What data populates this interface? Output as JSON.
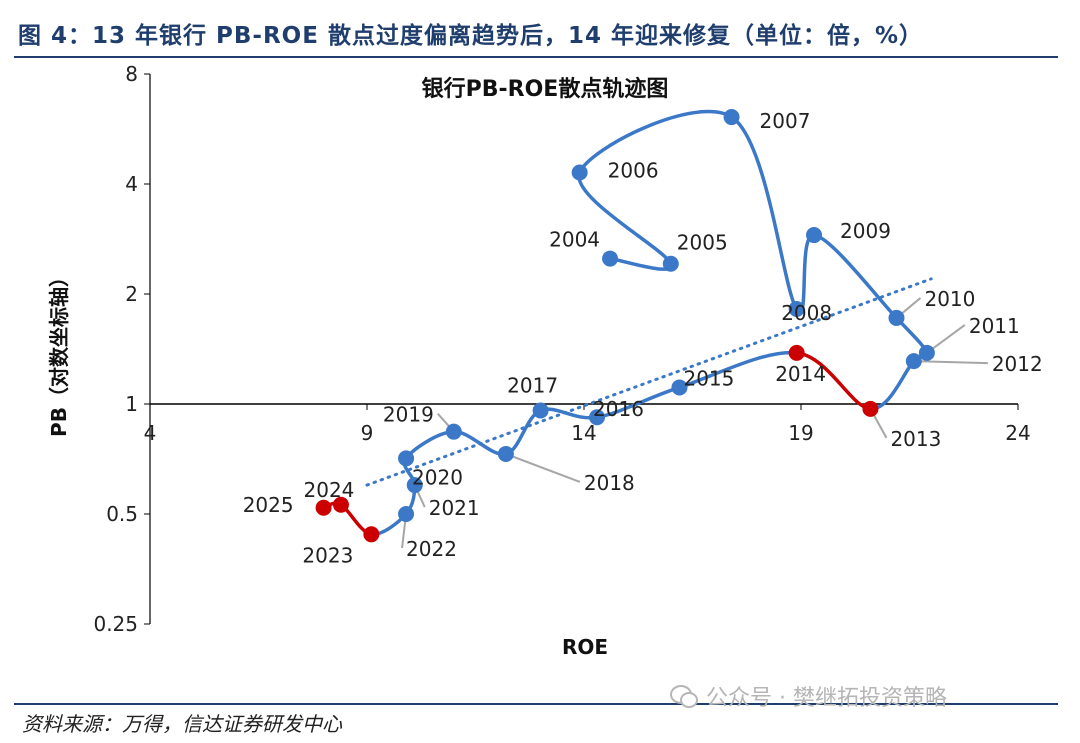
{
  "figure": {
    "title": "图 4：13 年银行 PB-ROE 散点过度偏离趋势后，14 年迎来修复（单位：倍，%）",
    "source": "资料来源：万得，信达证券研发中心",
    "watermark": "公众号 · 樊继拓投资策略"
  },
  "colors": {
    "header": "#1f3e6e",
    "series_blue": "#3b78c8",
    "series_red": "#cc0000",
    "trend": "#3b78c8",
    "leader": "#a6a6a6"
  },
  "chart_data": {
    "type": "scatter",
    "title": "银行PB-ROE散点轨迹图",
    "xlabel": "ROE",
    "ylabel": "PB（对数坐标轴）",
    "y_scale": "log2",
    "xlim": [
      4,
      24
    ],
    "ylim": [
      0.25,
      8
    ],
    "x_ticks": [
      4,
      9,
      14,
      19,
      24
    ],
    "y_ticks": [
      0.25,
      0.5,
      1,
      2,
      4,
      8
    ],
    "y_tick_labels": [
      "0.25",
      "0.5",
      "1",
      "2",
      "4",
      "8"
    ],
    "x_axis_crosses_y": 1,
    "points": [
      {
        "label": "2004",
        "x": 14.6,
        "y": 2.5,
        "color": "blue"
      },
      {
        "label": "2005",
        "x": 16.0,
        "y": 2.42,
        "color": "blue"
      },
      {
        "label": "2006",
        "x": 13.9,
        "y": 4.3,
        "color": "blue"
      },
      {
        "label": "2007",
        "x": 17.4,
        "y": 6.1,
        "color": "blue"
      },
      {
        "label": "2008",
        "x": 18.9,
        "y": 1.82,
        "color": "blue"
      },
      {
        "label": "2009",
        "x": 19.3,
        "y": 2.9,
        "color": "blue"
      },
      {
        "label": "2010",
        "x": 21.2,
        "y": 1.72,
        "color": "blue"
      },
      {
        "label": "2011",
        "x": 21.9,
        "y": 1.38,
        "color": "blue"
      },
      {
        "label": "2012",
        "x": 21.6,
        "y": 1.31,
        "color": "blue"
      },
      {
        "label": "2013",
        "x": 20.6,
        "y": 0.97,
        "color": "red"
      },
      {
        "label": "2014",
        "x": 18.9,
        "y": 1.38,
        "color": "red"
      },
      {
        "label": "2015",
        "x": 16.2,
        "y": 1.11,
        "color": "blue"
      },
      {
        "label": "2016",
        "x": 14.3,
        "y": 0.92,
        "color": "blue"
      },
      {
        "label": "2017",
        "x": 13.0,
        "y": 0.96,
        "color": "blue"
      },
      {
        "label": "2018",
        "x": 12.2,
        "y": 0.73,
        "color": "blue"
      },
      {
        "label": "2019",
        "x": 11.0,
        "y": 0.84,
        "color": "blue"
      },
      {
        "label": "2020",
        "x": 9.9,
        "y": 0.71,
        "color": "blue"
      },
      {
        "label": "2021",
        "x": 10.1,
        "y": 0.6,
        "color": "blue"
      },
      {
        "label": "2022",
        "x": 9.9,
        "y": 0.5,
        "color": "blue"
      },
      {
        "label": "2023",
        "x": 9.1,
        "y": 0.44,
        "color": "red"
      },
      {
        "label": "2024",
        "x": 8.4,
        "y": 0.53,
        "color": "red"
      },
      {
        "label": "2025",
        "x": 8.0,
        "y": 0.52,
        "color": "red"
      }
    ],
    "red_segments": [
      [
        "2013",
        "2014"
      ],
      [
        "2023",
        "2024"
      ],
      [
        "2024",
        "2025"
      ]
    ],
    "trendline": {
      "style": "dotted",
      "from": {
        "x": 9.0,
        "y": 0.6
      },
      "to": {
        "x": 22.0,
        "y": 2.2
      }
    }
  }
}
